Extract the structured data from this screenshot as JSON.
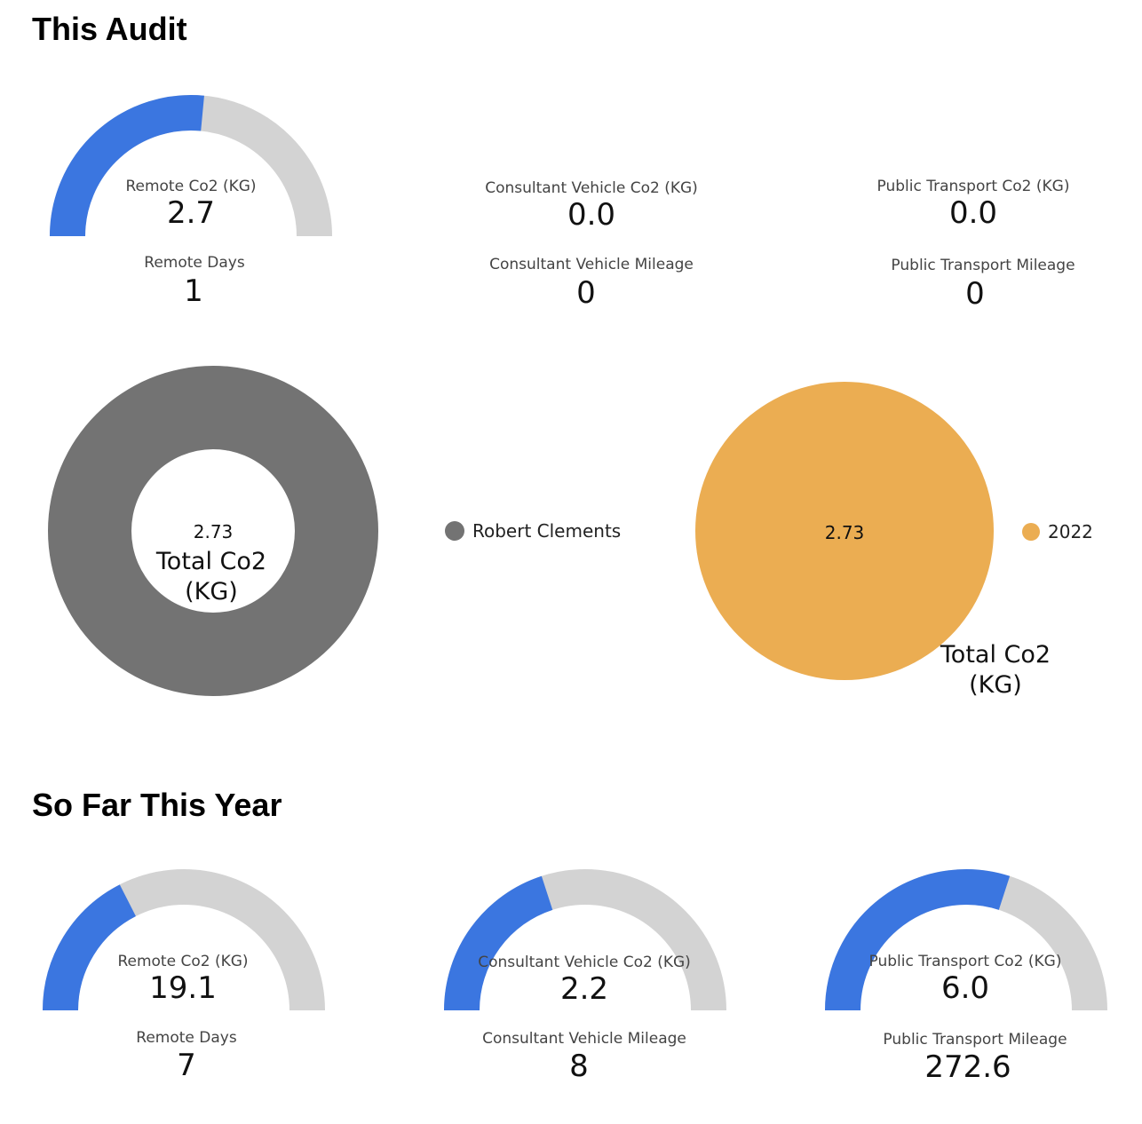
{
  "colors": {
    "fill": "#3b76e0",
    "track": "#d3d3d3",
    "donut": "#737373",
    "pie": "#ebad52"
  },
  "this_audit": {
    "title": "This Audit",
    "remote": {
      "co2_label": "Remote Co2 (KG)",
      "co2_value": "2.7",
      "gauge_fraction": 0.53,
      "sub_label": "Remote Days",
      "sub_value": "1"
    },
    "vehicle": {
      "co2_label": "Consultant Vehicle Co2 (KG)",
      "co2_value": "0.0",
      "sub_label": "Consultant Vehicle Mileage",
      "sub_value": "0"
    },
    "transport": {
      "co2_label": "Public Transport Co2 (KG)",
      "co2_value": "0.0",
      "sub_label": "Public Transport Mileage",
      "sub_value": "0"
    }
  },
  "chart_data": [
    {
      "type": "pie",
      "variant": "donut",
      "categories": [
        "Robert Clements"
      ],
      "values": [
        2.73
      ],
      "value_label": "2.73",
      "center_label_line1": "Total Co2",
      "center_label_line2": "(KG)",
      "legend": [
        "Robert Clements"
      ],
      "legend_position": "right"
    },
    {
      "type": "pie",
      "categories": [
        "2022"
      ],
      "values": [
        2.73
      ],
      "value_label": "2.73",
      "label_line1": "Total Co2",
      "label_line2": "(KG)",
      "legend": [
        "2022"
      ],
      "legend_position": "right"
    }
  ],
  "so_far": {
    "title": "So Far This Year",
    "remote": {
      "co2_label": "Remote Co2 (KG)",
      "co2_value": "19.1",
      "gauge_fraction": 0.35,
      "sub_label": "Remote Days",
      "sub_value": "7"
    },
    "vehicle": {
      "co2_label": "Consultant Vehicle Co2 (KG)",
      "co2_value": "2.2",
      "gauge_fraction": 0.4,
      "sub_label": "Consultant Vehicle Mileage",
      "sub_value": "8"
    },
    "transport": {
      "co2_label": "Public Transport Co2 (KG)",
      "co2_value": "6.0",
      "gauge_fraction": 0.6,
      "sub_label": "Public Transport Mileage",
      "sub_value": "272.6"
    }
  }
}
